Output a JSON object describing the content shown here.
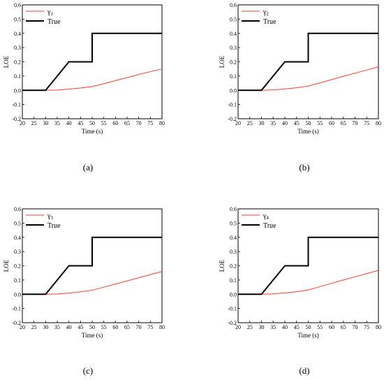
{
  "colors": {
    "estimate": "#ff3b30",
    "true": "#000000",
    "axis": "#000000"
  },
  "chart_data": [
    {
      "type": "line",
      "caption": "(a)",
      "xlabel": "Time (s)",
      "ylabel": "LOE",
      "xlim": [
        20,
        80
      ],
      "ylim": [
        -0.2,
        0.6
      ],
      "xticks": [
        "20",
        "25",
        "30",
        "35",
        "40",
        "45",
        "50",
        "55",
        "60",
        "65",
        "70",
        "75",
        "80"
      ],
      "yticks": [
        "-0.2",
        "-0.1",
        "0.0",
        "0.1",
        "0.2",
        "0.3",
        "0.4",
        "0.5",
        "0.6"
      ],
      "grid": false,
      "legend_position": "top-left",
      "series": [
        {
          "name": "γ",
          "subscript": "1",
          "color": "#ff3b30",
          "x": [
            20,
            30,
            35,
            40,
            45,
            50,
            55,
            60,
            65,
            70,
            75,
            80
          ],
          "y": [
            0,
            0,
            0.002,
            0.008,
            0.016,
            0.026,
            0.046,
            0.068,
            0.089,
            0.111,
            0.131,
            0.15
          ]
        },
        {
          "name": "True",
          "color": "#000000",
          "x": [
            20,
            30,
            40,
            50,
            50,
            80
          ],
          "y": [
            0,
            0,
            0.2,
            0.2,
            0.4,
            0.4
          ]
        }
      ]
    },
    {
      "type": "line",
      "caption": "(b)",
      "xlabel": "Time (s)",
      "ylabel": "LOE",
      "xlim": [
        20,
        80
      ],
      "ylim": [
        -0.2,
        0.6
      ],
      "xticks": [
        "20",
        "25",
        "30",
        "35",
        "40",
        "45",
        "50",
        "55",
        "60",
        "65",
        "70",
        "75",
        "80"
      ],
      "yticks": [
        "-0.2",
        "-0.1",
        "0.0",
        "0.1",
        "0.2",
        "0.3",
        "0.4",
        "0.5",
        "0.6"
      ],
      "grid": false,
      "legend_position": "top-left",
      "series": [
        {
          "name": "γ",
          "subscript": "2",
          "color": "#ff3b30",
          "x": [
            20,
            30,
            35,
            40,
            45,
            50,
            55,
            60,
            65,
            70,
            75,
            80
          ],
          "y": [
            0,
            0,
            0.003,
            0.009,
            0.018,
            0.03,
            0.052,
            0.075,
            0.098,
            0.12,
            0.142,
            0.165
          ]
        },
        {
          "name": "True",
          "color": "#000000",
          "x": [
            20,
            30,
            40,
            50,
            50,
            80
          ],
          "y": [
            0,
            0,
            0.2,
            0.2,
            0.4,
            0.4
          ]
        }
      ]
    },
    {
      "type": "line",
      "caption": "(c)",
      "xlabel": "Time (s)",
      "ylabel": "LOE",
      "xlim": [
        20,
        80
      ],
      "ylim": [
        -0.2,
        0.6
      ],
      "xticks": [
        "20",
        "25",
        "30",
        "35",
        "40",
        "45",
        "50",
        "55",
        "60",
        "65",
        "70",
        "75",
        "80"
      ],
      "yticks": [
        "-0.2",
        "-0.1",
        "0.0",
        "0.1",
        "0.2",
        "0.3",
        "0.4",
        "0.5",
        "0.6"
      ],
      "grid": false,
      "legend_position": "top-left",
      "series": [
        {
          "name": "γ",
          "subscript": "3",
          "color": "#ff3b30",
          "x": [
            20,
            30,
            35,
            40,
            45,
            50,
            55,
            60,
            65,
            70,
            75,
            80
          ],
          "y": [
            0,
            0,
            0.002,
            0.008,
            0.017,
            0.028,
            0.05,
            0.072,
            0.094,
            0.116,
            0.138,
            0.16
          ]
        },
        {
          "name": "True",
          "color": "#000000",
          "x": [
            20,
            30,
            40,
            50,
            50,
            80
          ],
          "y": [
            0,
            0,
            0.2,
            0.2,
            0.4,
            0.4
          ]
        }
      ]
    },
    {
      "type": "line",
      "caption": "(d)",
      "xlabel": "Time (s)",
      "ylabel": "LOE",
      "xlim": [
        20,
        80
      ],
      "ylim": [
        -0.2,
        0.6
      ],
      "xticks": [
        "20",
        "25",
        "30",
        "35",
        "40",
        "45",
        "50",
        "55",
        "60",
        "65",
        "70",
        "75",
        "80"
      ],
      "yticks": [
        "-0.2",
        "-0.1",
        "0.0",
        "0.1",
        "0.2",
        "0.3",
        "0.4",
        "0.5",
        "0.6"
      ],
      "grid": false,
      "legend_position": "top-left",
      "series": [
        {
          "name": "γ",
          "subscript": "4",
          "color": "#ff3b30",
          "x": [
            20,
            30,
            35,
            40,
            45,
            50,
            55,
            60,
            65,
            70,
            75,
            80
          ],
          "y": [
            0,
            0,
            0.003,
            0.009,
            0.018,
            0.03,
            0.053,
            0.077,
            0.1,
            0.123,
            0.145,
            0.168
          ]
        },
        {
          "name": "True",
          "color": "#000000",
          "x": [
            20,
            30,
            40,
            50,
            50,
            80
          ],
          "y": [
            0,
            0,
            0.2,
            0.2,
            0.4,
            0.4
          ]
        }
      ]
    }
  ]
}
